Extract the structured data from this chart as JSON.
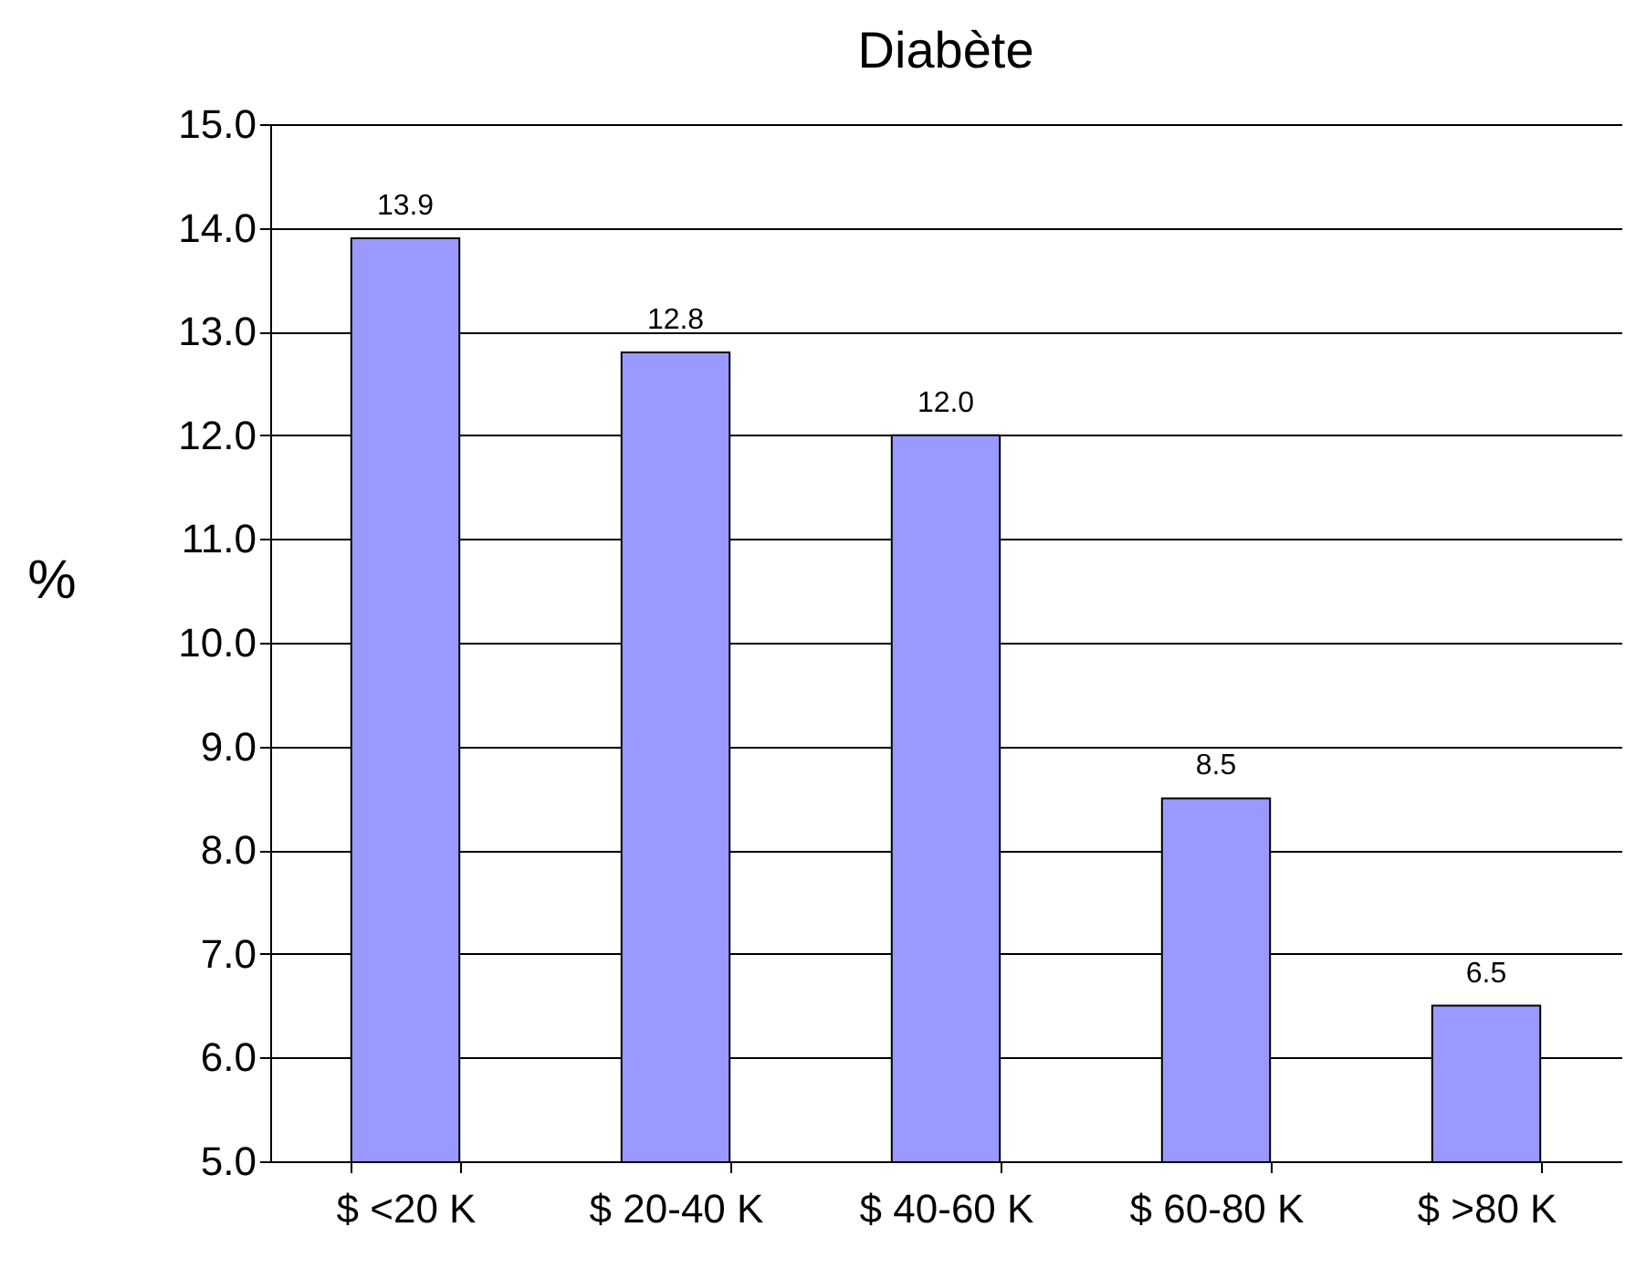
{
  "chart_data": {
    "type": "bar",
    "title": "Diabète",
    "ylabel": "%",
    "categories": [
      "$ <20 K",
      "$ 20-40 K",
      "$ 40-60 K",
      "$ 60-80 K",
      "$ >80 K"
    ],
    "values": [
      13.9,
      12.8,
      12.0,
      8.5,
      6.5
    ],
    "value_labels": [
      "13.9",
      "12.8",
      "12.0",
      "8.5",
      "6.5"
    ],
    "color": "#9999ff",
    "ylim": [
      5,
      15
    ],
    "yticks": [
      {
        "value": 5,
        "label": "5.0"
      },
      {
        "value": 6,
        "label": "6.0"
      },
      {
        "value": 7,
        "label": "7.0"
      },
      {
        "value": 8,
        "label": "8.0"
      },
      {
        "value": 9,
        "label": "9.0"
      },
      {
        "value": 10,
        "label": "10.0"
      },
      {
        "value": 11,
        "label": "11.0"
      },
      {
        "value": 12,
        "label": "12.0"
      },
      {
        "value": 13,
        "label": "13.0"
      },
      {
        "value": 14,
        "label": "14.0"
      },
      {
        "value": 15,
        "label": "15.0"
      }
    ],
    "grid": "y"
  }
}
